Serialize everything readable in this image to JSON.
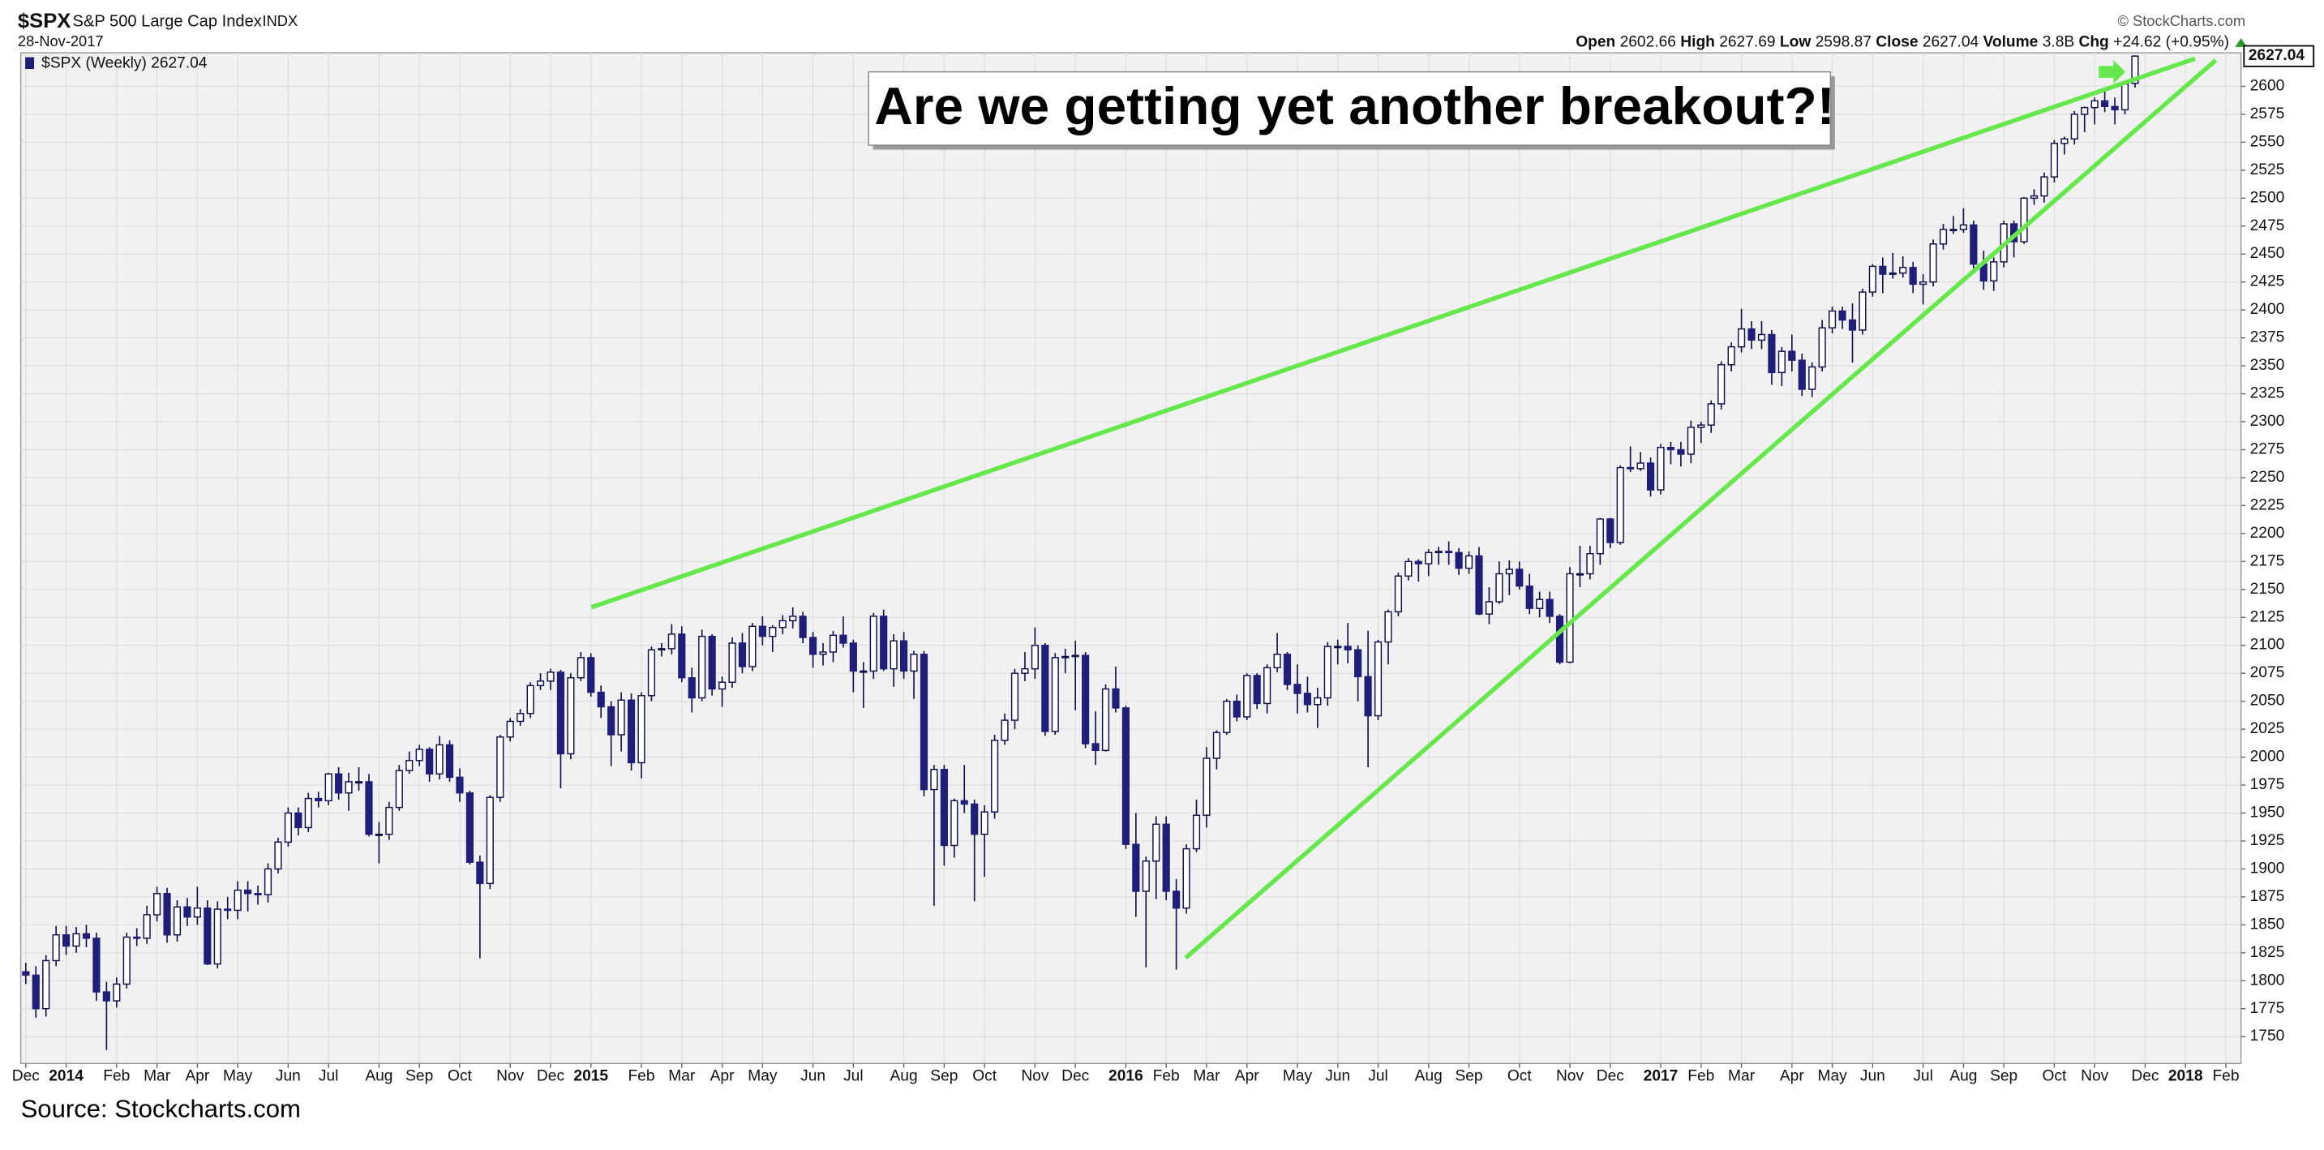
{
  "header": {
    "symbol": "$SPX",
    "name": "S&P 500 Large Cap Index",
    "exchange": "INDX",
    "date": "28-Nov-2017",
    "credit": "© StockCharts.com",
    "quote_labels": [
      "Open",
      "High",
      "Low",
      "Close",
      "Volume",
      "Chg"
    ],
    "volume": "3.8B",
    "change": "+24.62 (+0.95%)"
  },
  "source": "Source: Stockcharts.com",
  "chart_data": {
    "type": "candlestick",
    "legend": "$SPX (Weekly) 2627.04",
    "annotation": "Are we getting yet another breakout?!",
    "up_color": "#ffffff",
    "down_color": "#1f1f7a",
    "outline_color": "#10104a",
    "grid": true,
    "open": [
      1808,
      1805,
      1775,
      1818,
      1841,
      1831,
      1842,
      1838,
      1790,
      1782,
      1797,
      1839,
      1838,
      1859,
      1878,
      1841,
      1866,
      1857,
      1865,
      1815,
      1864,
      1863,
      1881,
      1878,
      1877,
      1900,
      1924,
      1950,
      1937,
      1963,
      1961,
      1985,
      1968,
      1978,
      1978,
      1931,
      1931,
      1955,
      1988,
      1997,
      2007,
      1985,
      2011,
      1982,
      1968,
      1906,
      1887,
      1964,
      2018,
      2032,
      2039,
      2064,
      2068,
      2076,
      2003,
      2071,
      2089,
      2058,
      2045,
      2020,
      2051,
      1995,
      2055,
      2096,
      2097,
      2110,
      2071,
      2053,
      2108,
      2061,
      2067,
      2102,
      2081,
      2117,
      2108,
      2116,
      2122,
      2126,
      2107,
      2092,
      2094,
      2109,
      2102,
      2077,
      2077,
      2126,
      2079,
      2104,
      2077,
      2092,
      1971,
      1989,
      1921,
      1961,
      1958,
      1931,
      1951,
      2015,
      2033,
      2075,
      2079,
      2100,
      2023,
      2089,
      2090,
      2091,
      2012,
      2006,
      2061,
      2044,
      1922,
      1880,
      1907,
      1940,
      1880,
      1865,
      1918,
      1948,
      1999,
      2022,
      2050,
      2036,
      2073,
      2048,
      2080,
      2092,
      2065,
      2057,
      2047,
      2053,
      2099,
      2099,
      2096,
      2072,
      2037,
      2103,
      2130,
      2162,
      2175,
      2173,
      2183,
      2184,
      2183,
      2169,
      2180,
      2128,
      2139,
      2164,
      2168,
      2153,
      2133,
      2141,
      2126,
      2085,
      2164,
      2164,
      2182,
      2213,
      2192,
      2259,
      2258,
      2263,
      2239,
      2277,
      2275,
      2271,
      2295,
      2297,
      2316,
      2351,
      2367,
      2383,
      2373,
      2378,
      2344,
      2363,
      2355,
      2329,
      2349,
      2384,
      2399,
      2391,
      2382,
      2416,
      2439,
      2432,
      2433,
      2438,
      2423,
      2425,
      2459,
      2472,
      2472,
      2476,
      2441,
      2426,
      2443,
      2477,
      2461,
      2500,
      2502,
      2519,
      2549,
      2553,
      2575,
      2581,
      2587,
      2582,
      2579,
      2602.66
    ],
    "high": [
      1816,
      1813,
      1823,
      1849,
      1849,
      1848,
      1850,
      1843,
      1799,
      1803,
      1843,
      1847,
      1867,
      1884,
      1883,
      1872,
      1874,
      1884,
      1872,
      1871,
      1875,
      1889,
      1889,
      1885,
      1905,
      1928,
      1955,
      1955,
      1968,
      1969,
      1986,
      1991,
      1986,
      1991,
      1985,
      1942,
      1960,
      1993,
      2005,
      2011,
      2009,
      2019,
      2015,
      1990,
      1970,
      1912,
      1966,
      2020,
      2035,
      2043,
      2067,
      2075,
      2079,
      2078,
      2075,
      2094,
      2093,
      2064,
      2050,
      2058,
      2057,
      2058,
      2099,
      2102,
      2119,
      2117,
      2080,
      2114,
      2110,
      2072,
      2107,
      2111,
      2120,
      2126,
      2118,
      2127,
      2134,
      2130,
      2112,
      2102,
      2113,
      2126,
      2105,
      2085,
      2129,
      2132,
      2110,
      2112,
      2095,
      2095,
      1993,
      1993,
      1963,
      1993,
      1962,
      1957,
      2020,
      2039,
      2079,
      2094,
      2116,
      2102,
      2093,
      2097,
      2104,
      2094,
      2041,
      2065,
      2081,
      2046,
      1950,
      1911,
      1947,
      1947,
      1891,
      1922,
      1962,
      2009,
      2024,
      2052,
      2056,
      2075,
      2075,
      2083,
      2111,
      2094,
      2083,
      2072,
      2062,
      2103,
      2105,
      2120,
      2100,
      2113,
      2105,
      2132,
      2165,
      2178,
      2177,
      2186,
      2188,
      2193,
      2187,
      2184,
      2188,
      2152,
      2175,
      2176,
      2175,
      2164,
      2148,
      2148,
      2128,
      2170,
      2189,
      2189,
      2214,
      2214,
      2261,
      2278,
      2273,
      2268,
      2280,
      2282,
      2282,
      2301,
      2300,
      2319,
      2354,
      2371,
      2401,
      2390,
      2390,
      2382,
      2367,
      2378,
      2361,
      2353,
      2391,
      2403,
      2403,
      2406,
      2419,
      2441,
      2447,
      2451,
      2448,
      2443,
      2432,
      2463,
      2477,
      2484,
      2491,
      2480,
      2453,
      2447,
      2480,
      2480,
      2501,
      2508,
      2523,
      2552,
      2555,
      2578,
      2582,
      2590,
      2597,
      2590,
      2605,
      2627.69
    ],
    "low": [
      1797,
      1767,
      1768,
      1813,
      1823,
      1825,
      1830,
      1782,
      1738,
      1776,
      1793,
      1831,
      1833,
      1853,
      1834,
      1835,
      1849,
      1850,
      1814,
      1811,
      1855,
      1855,
      1862,
      1868,
      1870,
      1896,
      1920,
      1930,
      1933,
      1955,
      1957,
      1962,
      1952,
      1970,
      1929,
      1905,
      1926,
      1952,
      1985,
      1992,
      1978,
      1980,
      1978,
      1960,
      1904,
      1820,
      1882,
      1960,
      2014,
      2028,
      2035,
      2060,
      2060,
      1972,
      1998,
      2068,
      2054,
      2035,
      1992,
      2005,
      1988,
      1981,
      2050,
      2090,
      2092,
      2067,
      2040,
      2050,
      2055,
      2045,
      2062,
      2075,
      2077,
      2100,
      2094,
      2110,
      2115,
      2102,
      2080,
      2082,
      2085,
      2098,
      2058,
      2044,
      2070,
      2077,
      2063,
      2070,
      2052,
      1965,
      1867,
      1903,
      1910,
      1950,
      1871,
      1893,
      1945,
      2011,
      2025,
      2068,
      2070,
      2019,
      2020,
      2075,
      2042,
      2008,
      1993,
      2005,
      2040,
      1918,
      1857,
      1812,
      1873,
      1872,
      1810,
      1860,
      1915,
      1937,
      1989,
      2020,
      2032,
      2033,
      2043,
      2039,
      2076,
      2060,
      2039,
      2040,
      2026,
      2046,
      2083,
      2084,
      2050,
      1991,
      2033,
      2083,
      2126,
      2158,
      2157,
      2162,
      2172,
      2172,
      2163,
      2164,
      2127,
      2119,
      2137,
      2145,
      2150,
      2128,
      2125,
      2120,
      2083,
      2084,
      2152,
      2159,
      2172,
      2187,
      2190,
      2255,
      2256,
      2233,
      2235,
      2262,
      2260,
      2263,
      2281,
      2290,
      2311,
      2345,
      2362,
      2365,
      2365,
      2333,
      2332,
      2345,
      2323,
      2322,
      2345,
      2379,
      2383,
      2353,
      2378,
      2412,
      2415,
      2428,
      2429,
      2415,
      2405,
      2421,
      2454,
      2468,
      2469,
      2437,
      2418,
      2417,
      2438,
      2447,
      2459,
      2494,
      2496,
      2514,
      2539,
      2548,
      2559,
      2566,
      2577,
      2566,
      2575,
      2598.87
    ],
    "close": [
      1805,
      1775,
      1818,
      1841,
      1831,
      1842,
      1838,
      1790,
      1782,
      1797,
      1839,
      1838,
      1859,
      1878,
      1841,
      1866,
      1857,
      1865,
      1815,
      1864,
      1863,
      1881,
      1878,
      1877,
      1900,
      1924,
      1950,
      1937,
      1963,
      1961,
      1985,
      1968,
      1978,
      1978,
      1931,
      1931,
      1955,
      1988,
      1997,
      2007,
      1985,
      2011,
      1982,
      1968,
      1906,
      1887,
      1964,
      2018,
      2032,
      2039,
      2064,
      2068,
      2076,
      2003,
      2071,
      2089,
      2058,
      2045,
      2020,
      2051,
      1995,
      2055,
      2096,
      2097,
      2110,
      2071,
      2053,
      2108,
      2061,
      2067,
      2102,
      2081,
      2117,
      2108,
      2116,
      2122,
      2126,
      2107,
      2092,
      2094,
      2109,
      2102,
      2077,
      2077,
      2126,
      2079,
      2104,
      2077,
      2092,
      1971,
      1989,
      1921,
      1961,
      1958,
      1931,
      1951,
      2015,
      2033,
      2075,
      2079,
      2100,
      2023,
      2089,
      2090,
      2091,
      2012,
      2006,
      2061,
      2044,
      1922,
      1880,
      1907,
      1940,
      1880,
      1865,
      1918,
      1948,
      1999,
      2022,
      2050,
      2036,
      2073,
      2048,
      2080,
      2092,
      2065,
      2057,
      2047,
      2053,
      2099,
      2099,
      2096,
      2072,
      2037,
      2103,
      2130,
      2162,
      2175,
      2173,
      2183,
      2184,
      2183,
      2169,
      2180,
      2128,
      2139,
      2164,
      2168,
      2153,
      2133,
      2141,
      2126,
      2085,
      2164,
      2164,
      2182,
      2213,
      2192,
      2259,
      2258,
      2263,
      2239,
      2277,
      2275,
      2271,
      2295,
      2297,
      2316,
      2351,
      2367,
      2383,
      2373,
      2378,
      2344,
      2363,
      2355,
      2329,
      2349,
      2384,
      2399,
      2391,
      2382,
      2416,
      2439,
      2432,
      2433,
      2438,
      2423,
      2425,
      2459,
      2472,
      2472,
      2476,
      2441,
      2426,
      2443,
      2477,
      2461,
      2500,
      2502,
      2519,
      2549,
      2553,
      2575,
      2581,
      2587,
      2582,
      2579,
      2602,
      2627.04
    ],
    "xlim": [
      -0.5,
      219.5
    ],
    "xticks": [
      {
        "value": 0,
        "label": "Dec"
      },
      {
        "value": 4,
        "label": "2014"
      },
      {
        "value": 9,
        "label": "Feb"
      },
      {
        "value": 13,
        "label": "Mar"
      },
      {
        "value": 17,
        "label": "Apr"
      },
      {
        "value": 21,
        "label": "May"
      },
      {
        "value": 26,
        "label": "Jun"
      },
      {
        "value": 30,
        "label": "Jul"
      },
      {
        "value": 35,
        "label": "Aug"
      },
      {
        "value": 39,
        "label": "Sep"
      },
      {
        "value": 43,
        "label": "Oct"
      },
      {
        "value": 48,
        "label": "Nov"
      },
      {
        "value": 52,
        "label": "Dec"
      },
      {
        "value": 56,
        "label": "2015"
      },
      {
        "value": 61,
        "label": "Feb"
      },
      {
        "value": 65,
        "label": "Mar"
      },
      {
        "value": 69,
        "label": "Apr"
      },
      {
        "value": 73,
        "label": "May"
      },
      {
        "value": 78,
        "label": "Jun"
      },
      {
        "value": 82,
        "label": "Jul"
      },
      {
        "value": 87,
        "label": "Aug"
      },
      {
        "value": 91,
        "label": "Sep"
      },
      {
        "value": 95,
        "label": "Oct"
      },
      {
        "value": 100,
        "label": "Nov"
      },
      {
        "value": 104,
        "label": "Dec"
      },
      {
        "value": 109,
        "label": "2016"
      },
      {
        "value": 113,
        "label": "Feb"
      },
      {
        "value": 117,
        "label": "Mar"
      },
      {
        "value": 121,
        "label": "Apr"
      },
      {
        "value": 126,
        "label": "May"
      },
      {
        "value": 130,
        "label": "Jun"
      },
      {
        "value": 134,
        "label": "Jul"
      },
      {
        "value": 139,
        "label": "Aug"
      },
      {
        "value": 143,
        "label": "Sep"
      },
      {
        "value": 148,
        "label": "Oct"
      },
      {
        "value": 153,
        "label": "Nov"
      },
      {
        "value": 157,
        "label": "Dec"
      },
      {
        "value": 162,
        "label": "2017"
      },
      {
        "value": 166,
        "label": "Feb"
      },
      {
        "value": 170,
        "label": "Mar"
      },
      {
        "value": 175,
        "label": "Apr"
      },
      {
        "value": 179,
        "label": "May"
      },
      {
        "value": 183,
        "label": "Jun"
      },
      {
        "value": 188,
        "label": "Jul"
      },
      {
        "value": 192,
        "label": "Aug"
      },
      {
        "value": 196,
        "label": "Sep"
      },
      {
        "value": 201,
        "label": "Oct"
      },
      {
        "value": 205,
        "label": "Nov"
      },
      {
        "value": 210,
        "label": "Dec"
      },
      {
        "value": 214,
        "label": "2018"
      },
      {
        "value": 218,
        "label": "Feb"
      }
    ],
    "ylim": [
      1726,
      2630
    ],
    "yticks": [
      1750,
      1775,
      1800,
      1825,
      1850,
      1875,
      1900,
      1925,
      1950,
      1975,
      2000,
      2025,
      2050,
      2075,
      2100,
      2125,
      2150,
      2175,
      2200,
      2225,
      2250,
      2275,
      2300,
      2325,
      2350,
      2375,
      2400,
      2425,
      2450,
      2475,
      2500,
      2525,
      2550,
      2575,
      2600
    ]
  }
}
